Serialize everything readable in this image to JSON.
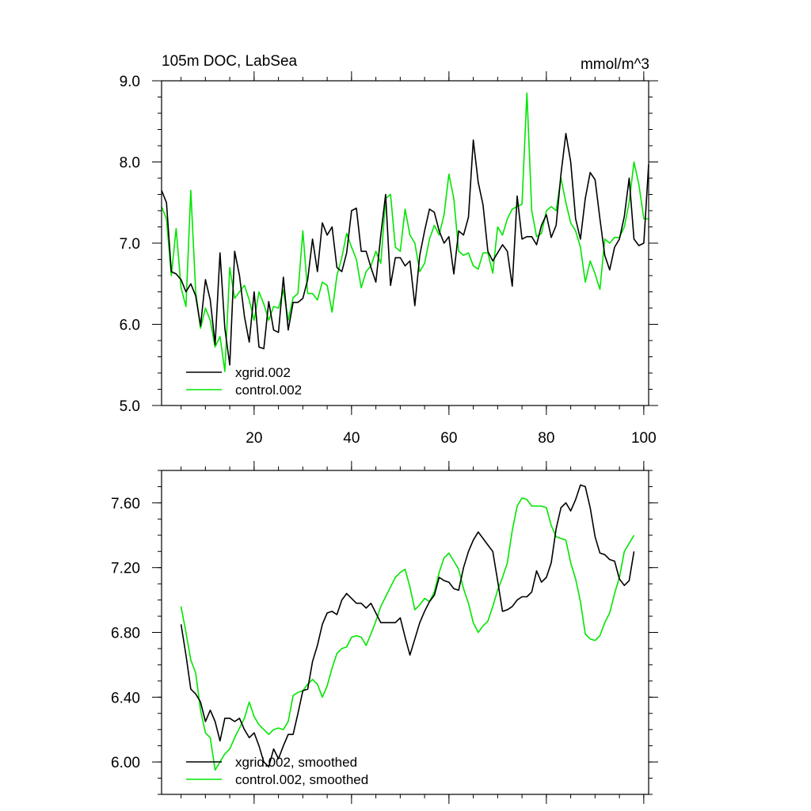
{
  "chart_data": [
    {
      "type": "line",
      "title": "105m DOC, LabSea",
      "units": "mmol/m^3",
      "xlim": [
        1,
        101
      ],
      "ylim": [
        5.0,
        9.0
      ],
      "xticks": [
        20,
        40,
        60,
        80,
        100
      ],
      "xtick_labels": [
        "20",
        "40",
        "60",
        "80",
        "100"
      ],
      "yticks": [
        5.0,
        6.0,
        7.0,
        8.0,
        9.0
      ],
      "ytick_labels": [
        "5.0",
        "6.0",
        "7.0",
        "8.0",
        "9.0"
      ],
      "legend_position": "bottom-left",
      "series": [
        {
          "name": "xgrid.002",
          "color": "#000000",
          "x": [
            1,
            2,
            3,
            4,
            5,
            6,
            7,
            8,
            9,
            10,
            11,
            12,
            13,
            14,
            15,
            16,
            17,
            18,
            19,
            20,
            21,
            22,
            23,
            24,
            25,
            26,
            27,
            28,
            29,
            30,
            31,
            32,
            33,
            34,
            35,
            36,
            37,
            38,
            39,
            40,
            41,
            42,
            43,
            44,
            45,
            46,
            47,
            48,
            49,
            50,
            51,
            52,
            53,
            54,
            55,
            56,
            57,
            58,
            59,
            60,
            61,
            62,
            63,
            64,
            65,
            66,
            67,
            68,
            69,
            70,
            71,
            72,
            73,
            74,
            75,
            76,
            77,
            78,
            79,
            80,
            81,
            82,
            83,
            84,
            85,
            86,
            87,
            88,
            89,
            90,
            91,
            92,
            93,
            94,
            95,
            96,
            97,
            98,
            99,
            100,
            101
          ],
          "values": [
            7.65,
            7.5,
            6.65,
            6.62,
            6.55,
            6.4,
            6.5,
            6.35,
            5.98,
            6.55,
            6.3,
            5.75,
            6.88,
            5.95,
            5.5,
            6.9,
            6.6,
            6.1,
            5.78,
            6.4,
            5.72,
            5.7,
            6.28,
            5.93,
            5.9,
            6.58,
            5.93,
            6.27,
            6.27,
            6.32,
            6.55,
            7.05,
            6.65,
            7.25,
            7.1,
            7.2,
            6.7,
            6.65,
            6.88,
            7.4,
            7.43,
            6.9,
            6.9,
            6.7,
            6.52,
            7.1,
            7.6,
            6.48,
            6.82,
            6.82,
            6.72,
            6.78,
            6.23,
            6.85,
            7.15,
            7.42,
            7.38,
            7.15,
            7.0,
            7.08,
            6.62,
            7.15,
            7.1,
            7.32,
            8.27,
            7.75,
            7.47,
            6.9,
            6.78,
            6.88,
            6.98,
            6.9,
            6.47,
            7.58,
            7.05,
            7.08,
            7.08,
            6.98,
            7.22,
            7.35,
            7.07,
            7.22,
            7.85,
            8.35,
            8.0,
            7.3,
            7.05,
            7.55,
            7.87,
            7.78,
            7.3,
            6.85,
            6.67,
            6.95,
            7.05,
            7.33,
            7.8,
            7.05,
            6.97,
            7.0,
            7.97
          ]
        },
        {
          "name": "control.002",
          "color": "#00e600",
          "x": [
            1,
            2,
            3,
            4,
            5,
            6,
            7,
            8,
            9,
            10,
            11,
            12,
            13,
            14,
            15,
            16,
            17,
            18,
            19,
            20,
            21,
            22,
            23,
            24,
            25,
            26,
            27,
            28,
            29,
            30,
            31,
            32,
            33,
            34,
            35,
            36,
            37,
            38,
            39,
            40,
            41,
            42,
            43,
            44,
            45,
            46,
            47,
            48,
            49,
            50,
            51,
            52,
            53,
            54,
            55,
            56,
            57,
            58,
            59,
            60,
            61,
            62,
            63,
            64,
            65,
            66,
            67,
            68,
            69,
            70,
            71,
            72,
            73,
            74,
            75,
            76,
            77,
            78,
            79,
            80,
            81,
            82,
            83,
            84,
            85,
            86,
            87,
            88,
            89,
            90,
            91,
            92,
            93,
            94,
            95,
            96,
            97,
            98,
            99,
            100,
            101
          ],
          "values": [
            7.45,
            7.3,
            6.6,
            7.18,
            6.45,
            6.22,
            7.65,
            6.4,
            5.95,
            6.2,
            6.05,
            5.72,
            5.85,
            5.42,
            6.7,
            6.32,
            6.4,
            6.48,
            6.3,
            6.05,
            6.4,
            6.25,
            6.05,
            6.22,
            6.2,
            6.42,
            6.05,
            6.33,
            6.38,
            7.15,
            6.38,
            6.38,
            6.3,
            6.52,
            6.48,
            6.15,
            6.6,
            6.82,
            7.12,
            6.95,
            6.8,
            6.45,
            6.65,
            6.72,
            6.9,
            6.75,
            7.55,
            7.6,
            6.95,
            6.9,
            7.42,
            7.1,
            7.0,
            6.65,
            6.75,
            7.05,
            7.22,
            7.1,
            7.35,
            7.85,
            7.55,
            6.9,
            6.85,
            6.88,
            6.72,
            6.68,
            6.88,
            6.88,
            6.63,
            7.2,
            7.1,
            7.3,
            7.42,
            7.45,
            7.48,
            8.85,
            7.4,
            7.08,
            7.12,
            7.4,
            7.45,
            7.4,
            7.8,
            7.5,
            7.25,
            7.15,
            6.95,
            6.52,
            6.78,
            6.62,
            6.43,
            7.05,
            7.0,
            7.07,
            7.07,
            7.2,
            7.5,
            8.0,
            7.72,
            7.3,
            7.3
          ]
        }
      ]
    },
    {
      "type": "line",
      "title": "",
      "xlim": [
        1,
        101
      ],
      "ylim": [
        5.8,
        7.8
      ],
      "xticks": [
        20,
        40,
        60,
        80,
        100
      ],
      "xtick_labels": [],
      "yticks": [
        6.0,
        6.4,
        6.8,
        7.2,
        7.6
      ],
      "ytick_labels": [
        "6.00",
        "6.40",
        "6.80",
        "7.20",
        "7.60"
      ],
      "legend_position": "bottom-left",
      "series": [
        {
          "name": "xgrid.002, smoothed",
          "color": "#000000",
          "x": [
            5,
            6,
            7,
            8,
            9,
            10,
            11,
            12,
            13,
            14,
            15,
            16,
            17,
            18,
            19,
            20,
            21,
            22,
            23,
            24,
            25,
            26,
            27,
            28,
            29,
            30,
            31,
            32,
            33,
            34,
            35,
            36,
            37,
            38,
            39,
            40,
            41,
            42,
            43,
            44,
            45,
            46,
            47,
            48,
            49,
            50,
            51,
            52,
            53,
            54,
            55,
            56,
            57,
            58,
            59,
            60,
            61,
            62,
            63,
            64,
            65,
            66,
            67,
            68,
            69,
            70,
            71,
            72,
            73,
            74,
            75,
            76,
            77,
            78,
            79,
            80,
            81,
            82,
            83,
            84,
            85,
            86,
            87,
            88,
            89,
            90,
            91,
            92,
            93,
            94,
            95,
            96,
            97,
            98
          ],
          "values": [
            6.85,
            6.66,
            6.45,
            6.42,
            6.37,
            6.25,
            6.32,
            6.25,
            6.13,
            6.27,
            6.27,
            6.25,
            6.27,
            6.2,
            6.15,
            6.18,
            6.1,
            6.0,
            5.97,
            6.08,
            6.02,
            6.1,
            6.17,
            6.17,
            6.3,
            6.44,
            6.45,
            6.62,
            6.72,
            6.85,
            6.92,
            6.93,
            6.91,
            7.0,
            7.04,
            7.01,
            6.98,
            6.98,
            6.95,
            6.98,
            6.92,
            6.86,
            6.86,
            6.86,
            6.86,
            6.89,
            6.77,
            6.66,
            6.76,
            6.86,
            6.93,
            6.99,
            7.03,
            7.14,
            7.12,
            7.11,
            7.07,
            7.06,
            7.2,
            7.3,
            7.37,
            7.42,
            7.38,
            7.34,
            7.3,
            7.12,
            6.93,
            6.94,
            6.96,
            7.0,
            7.02,
            7.02,
            7.05,
            7.18,
            7.11,
            7.14,
            7.23,
            7.44,
            7.57,
            7.6,
            7.55,
            7.62,
            7.71,
            7.7,
            7.57,
            7.39,
            7.29,
            7.28,
            7.25,
            7.24,
            7.13,
            7.09,
            7.12,
            7.3
          ]
        },
        {
          "name": "control.002, smoothed",
          "color": "#00e600",
          "x": [
            5,
            6,
            7,
            8,
            9,
            10,
            11,
            12,
            13,
            14,
            15,
            16,
            17,
            18,
            19,
            20,
            21,
            22,
            23,
            24,
            25,
            26,
            27,
            28,
            29,
            30,
            31,
            32,
            33,
            34,
            35,
            36,
            37,
            38,
            39,
            40,
            41,
            42,
            43,
            44,
            45,
            46,
            47,
            48,
            49,
            50,
            51,
            52,
            53,
            54,
            55,
            56,
            57,
            58,
            59,
            60,
            61,
            62,
            63,
            64,
            65,
            66,
            67,
            68,
            69,
            70,
            71,
            72,
            73,
            74,
            75,
            76,
            77,
            78,
            79,
            80,
            81,
            82,
            83,
            84,
            85,
            86,
            87,
            88,
            89,
            90,
            91,
            92,
            93,
            94,
            95,
            96,
            97,
            98
          ],
          "values": [
            6.96,
            6.8,
            6.63,
            6.55,
            6.32,
            6.18,
            6.15,
            5.95,
            6.0,
            6.05,
            6.08,
            6.15,
            6.21,
            6.27,
            6.37,
            6.28,
            6.23,
            6.2,
            6.17,
            6.2,
            6.21,
            6.2,
            6.25,
            6.41,
            6.43,
            6.44,
            6.48,
            6.51,
            6.48,
            6.4,
            6.47,
            6.58,
            6.67,
            6.7,
            6.71,
            6.77,
            6.78,
            6.77,
            6.72,
            6.79,
            6.87,
            6.96,
            7.02,
            7.08,
            7.14,
            7.17,
            7.19,
            7.08,
            6.94,
            6.97,
            7.01,
            6.99,
            7.05,
            7.17,
            7.26,
            7.29,
            7.24,
            7.19,
            7.07,
            6.98,
            6.86,
            6.8,
            6.84,
            6.87,
            6.96,
            7.06,
            7.14,
            7.23,
            7.43,
            7.58,
            7.63,
            7.62,
            7.58,
            7.58,
            7.58,
            7.57,
            7.46,
            7.39,
            7.38,
            7.37,
            7.23,
            7.13,
            6.99,
            6.79,
            6.76,
            6.75,
            6.78,
            6.86,
            6.92,
            7.04,
            7.14,
            7.3,
            7.35,
            7.4
          ]
        }
      ]
    }
  ]
}
